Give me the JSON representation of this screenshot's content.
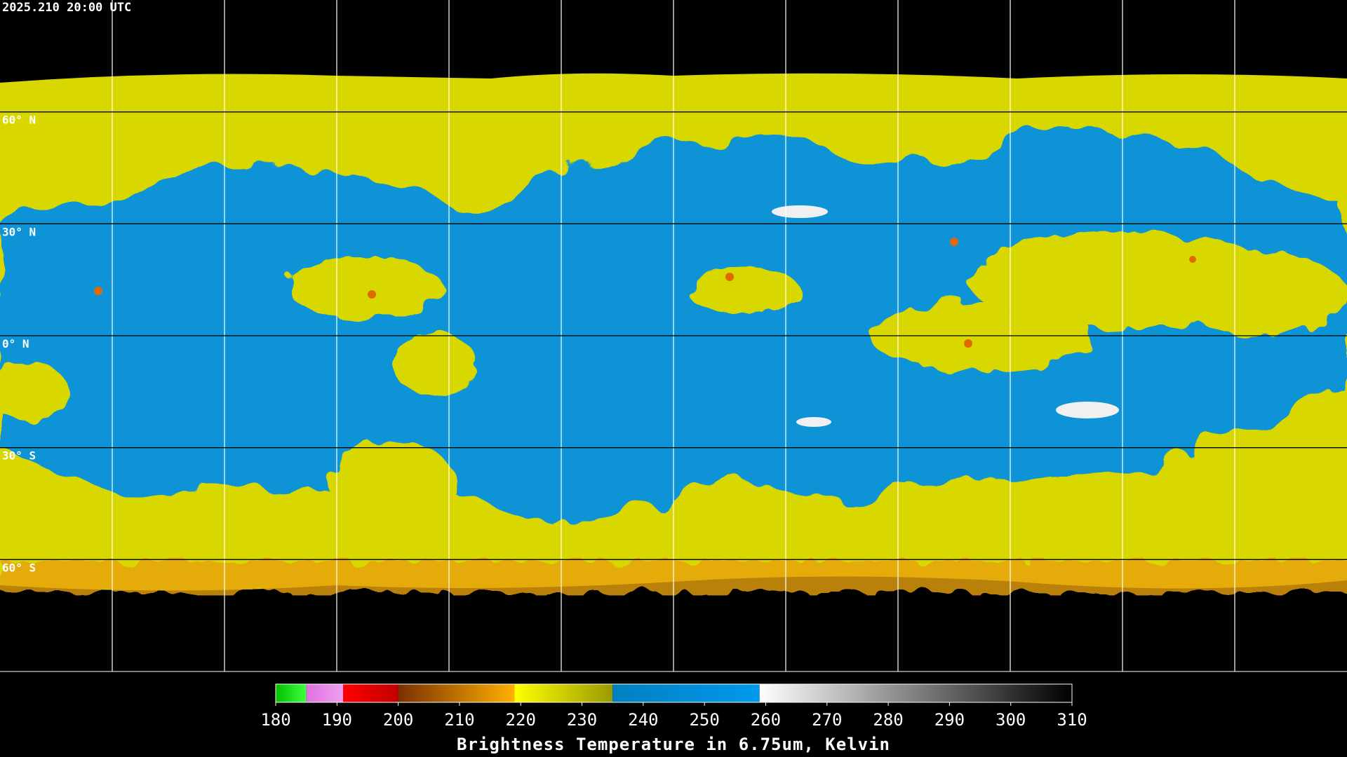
{
  "header": {
    "timestamp": "2025.210 20:00 UTC"
  },
  "map": {
    "latlim": [
      -90,
      90
    ],
    "lat_ticks": [
      {
        "value": 60,
        "label": "60° N"
      },
      {
        "value": 30,
        "label": "30° N"
      },
      {
        "value": 0,
        "label": "0° N"
      },
      {
        "value": -30,
        "label": "30° S"
      },
      {
        "value": -60,
        "label": "60° S"
      }
    ]
  },
  "colorbar": {
    "title": "Brightness Temperature in 6.75um, Kelvin",
    "range": [
      180,
      310
    ],
    "ticks": [
      180,
      190,
      200,
      210,
      220,
      230,
      240,
      250,
      260,
      270,
      280,
      290,
      300,
      310
    ],
    "segments": [
      {
        "from": 180,
        "to": 185,
        "colors": [
          "#00c000",
          "#40ff40"
        ]
      },
      {
        "from": 185,
        "to": 191,
        "colors": [
          "#e070e0",
          "#f0a0f0"
        ]
      },
      {
        "from": 191,
        "to": 200,
        "colors": [
          "#ff0000",
          "#c00000"
        ]
      },
      {
        "from": 200,
        "to": 219,
        "colors": [
          "#7a3000",
          "#ffb000"
        ]
      },
      {
        "from": 219,
        "to": 235,
        "colors": [
          "#ffff00",
          "#9a9a00"
        ]
      },
      {
        "from": 235,
        "to": 259,
        "colors": [
          "#0080c0",
          "#0099ee"
        ]
      },
      {
        "from": 259,
        "to": 310,
        "colors": [
          "#ffffff",
          "#000000"
        ]
      }
    ]
  }
}
